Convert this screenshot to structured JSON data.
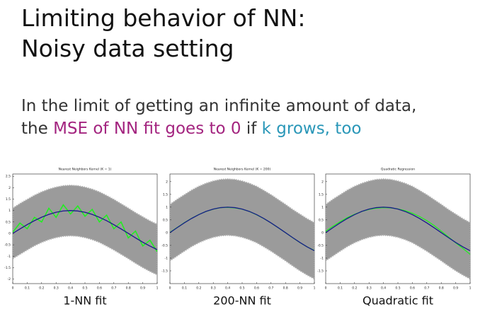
{
  "slide": {
    "title": [
      "Limiting behavior of NN:",
      "Noisy data setting"
    ],
    "subtitle": [
      [
        {
          "text": "In the limit of getting an infinite amount of data,",
          "color": "#333333"
        }
      ],
      [
        {
          "text": "the ",
          "color": "#333333"
        },
        {
          "text": "MSE of NN fit goes to 0",
          "color": "#a3247f"
        },
        {
          "text": " if ",
          "color": "#333333"
        },
        {
          "text": "k grows, too",
          "color": "#2a97b8"
        }
      ]
    ]
  },
  "chart_data": [
    {
      "type": "line",
      "title": "Nearest Neighbors Kernel (K = 1)",
      "caption": "1-NN fit",
      "x": [
        0,
        0.05,
        0.1,
        0.15,
        0.2,
        0.25,
        0.3,
        0.35,
        0.4,
        0.45,
        0.5,
        0.55,
        0.6,
        0.65,
        0.7,
        0.75,
        0.8,
        0.85,
        0.9,
        0.95,
        1
      ],
      "xlim": [
        0,
        1
      ],
      "xticks": [
        0,
        0.1,
        0.2,
        0.3,
        0.4,
        0.5,
        0.6,
        0.7,
        0.8,
        0.9,
        1
      ],
      "ylim": [
        -2.2,
        2.6
      ],
      "yticks": [
        -2,
        -1.5,
        -1,
        -0.5,
        0,
        0.5,
        1,
        1.5,
        2,
        2.5
      ],
      "series": [
        {
          "color": "#8a8a8a",
          "values": [
            1.1,
            1.3,
            1.48,
            1.66,
            1.81,
            1.93,
            2.02,
            2.08,
            2.1,
            2.08,
            2.02,
            1.93,
            1.81,
            1.65,
            1.48,
            1.29,
            1.1,
            0.9,
            0.72,
            0.54,
            0.39
          ],
          "lower": [
            -1.1,
            -0.91,
            -0.72,
            -0.54,
            -0.39,
            -0.27,
            -0.18,
            -0.12,
            -0.1,
            -0.12,
            -0.18,
            -0.27,
            -0.39,
            -0.55,
            -0.72,
            -0.91,
            -1.1,
            -1.3,
            -1.49,
            -1.66,
            -1.81
          ]
        },
        {
          "color": "#22ee22",
          "values": [
            0.05,
            0.45,
            0.2,
            0.7,
            0.5,
            1.1,
            0.7,
            1.25,
            0.85,
            1.2,
            0.75,
            1.05,
            0.5,
            0.8,
            0.2,
            0.5,
            -0.2,
            0.1,
            -0.55,
            -0.3,
            -0.8
          ]
        },
        {
          "color": "#1a1a8c",
          "values": [
            0,
            0.195,
            0.383,
            0.556,
            0.707,
            0.832,
            0.924,
            0.981,
            1,
            0.98,
            0.924,
            0.831,
            0.706,
            0.554,
            0.381,
            0.193,
            0,
            -0.197,
            -0.385,
            -0.558,
            -0.709
          ]
        }
      ]
    },
    {
      "type": "line",
      "title": "Nearest Neighbors Kernel (K = 200)",
      "caption": "200-NN fit",
      "x": [
        0,
        0.05,
        0.1,
        0.15,
        0.2,
        0.25,
        0.3,
        0.35,
        0.4,
        0.45,
        0.5,
        0.55,
        0.6,
        0.65,
        0.7,
        0.75,
        0.8,
        0.85,
        0.9,
        0.95,
        1
      ],
      "xlim": [
        0,
        1
      ],
      "xticks": [
        0,
        0.1,
        0.2,
        0.3,
        0.4,
        0.5,
        0.6,
        0.7,
        0.8,
        0.9,
        1
      ],
      "ylim": [
        -2,
        2.3
      ],
      "yticks": [
        -1.5,
        -1,
        -0.5,
        0,
        0.5,
        1,
        1.5,
        2
      ],
      "series": [
        {
          "color": "#8a8a8a",
          "values": [
            1.1,
            1.3,
            1.48,
            1.66,
            1.81,
            1.93,
            2.02,
            2.08,
            2.1,
            2.08,
            2.02,
            1.93,
            1.81,
            1.65,
            1.48,
            1.29,
            1.1,
            0.9,
            0.72,
            0.54,
            0.39
          ],
          "lower": [
            -1.1,
            -0.91,
            -0.72,
            -0.54,
            -0.39,
            -0.27,
            -0.18,
            -0.12,
            -0.1,
            -0.12,
            -0.18,
            -0.27,
            -0.39,
            -0.55,
            -0.72,
            -0.91,
            -1.1,
            -1.3,
            -1.49,
            -1.66,
            -1.81
          ]
        },
        {
          "color": "#22ee22",
          "values": [
            0.01,
            0.2,
            0.39,
            0.56,
            0.71,
            0.83,
            0.92,
            0.98,
            0.99,
            0.97,
            0.92,
            0.83,
            0.7,
            0.55,
            0.38,
            0.19,
            0,
            -0.2,
            -0.39,
            -0.56,
            -0.7
          ]
        },
        {
          "color": "#1a1a8c",
          "values": [
            0,
            0.195,
            0.383,
            0.556,
            0.707,
            0.832,
            0.924,
            0.981,
            1,
            0.98,
            0.924,
            0.831,
            0.706,
            0.554,
            0.381,
            0.193,
            0,
            -0.197,
            -0.385,
            -0.558,
            -0.709
          ]
        }
      ]
    },
    {
      "type": "line",
      "title": "Quadratic Regression",
      "caption": "Quadratic fit",
      "x": [
        0,
        0.05,
        0.1,
        0.15,
        0.2,
        0.25,
        0.3,
        0.35,
        0.4,
        0.45,
        0.5,
        0.55,
        0.6,
        0.65,
        0.7,
        0.75,
        0.8,
        0.85,
        0.9,
        0.95,
        1
      ],
      "xlim": [
        0,
        1
      ],
      "xticks": [
        0,
        0.1,
        0.2,
        0.3,
        0.4,
        0.5,
        0.6,
        0.7,
        0.8,
        0.9,
        1
      ],
      "ylim": [
        -2,
        2.3
      ],
      "yticks": [
        -1.5,
        -1,
        -0.5,
        0,
        0.5,
        1,
        1.5,
        2
      ],
      "series": [
        {
          "color": "#8a8a8a",
          "values": [
            1.1,
            1.3,
            1.48,
            1.66,
            1.81,
            1.93,
            2.02,
            2.08,
            2.1,
            2.08,
            2.02,
            1.93,
            1.81,
            1.65,
            1.48,
            1.29,
            1.1,
            0.9,
            0.72,
            0.54,
            0.39
          ],
          "lower": [
            -1.1,
            -0.91,
            -0.72,
            -0.54,
            -0.39,
            -0.27,
            -0.18,
            -0.12,
            -0.1,
            -0.12,
            -0.18,
            -0.27,
            -0.39,
            -0.55,
            -0.72,
            -0.91,
            -1.1,
            -1.3,
            -1.49,
            -1.66,
            -1.81
          ]
        },
        {
          "color": "#22ee22",
          "values": [
            0.05,
            0.25,
            0.43,
            0.59,
            0.72,
            0.83,
            0.91,
            0.96,
            0.98,
            0.97,
            0.93,
            0.86,
            0.76,
            0.63,
            0.47,
            0.28,
            0.06,
            -0.17,
            -0.4,
            -0.62,
            -0.85
          ]
        },
        {
          "color": "#1a1a8c",
          "values": [
            0,
            0.195,
            0.383,
            0.556,
            0.707,
            0.832,
            0.924,
            0.981,
            1,
            0.98,
            0.924,
            0.831,
            0.706,
            0.554,
            0.381,
            0.193,
            0,
            -0.197,
            -0.385,
            -0.558,
            -0.709
          ]
        }
      ]
    }
  ]
}
